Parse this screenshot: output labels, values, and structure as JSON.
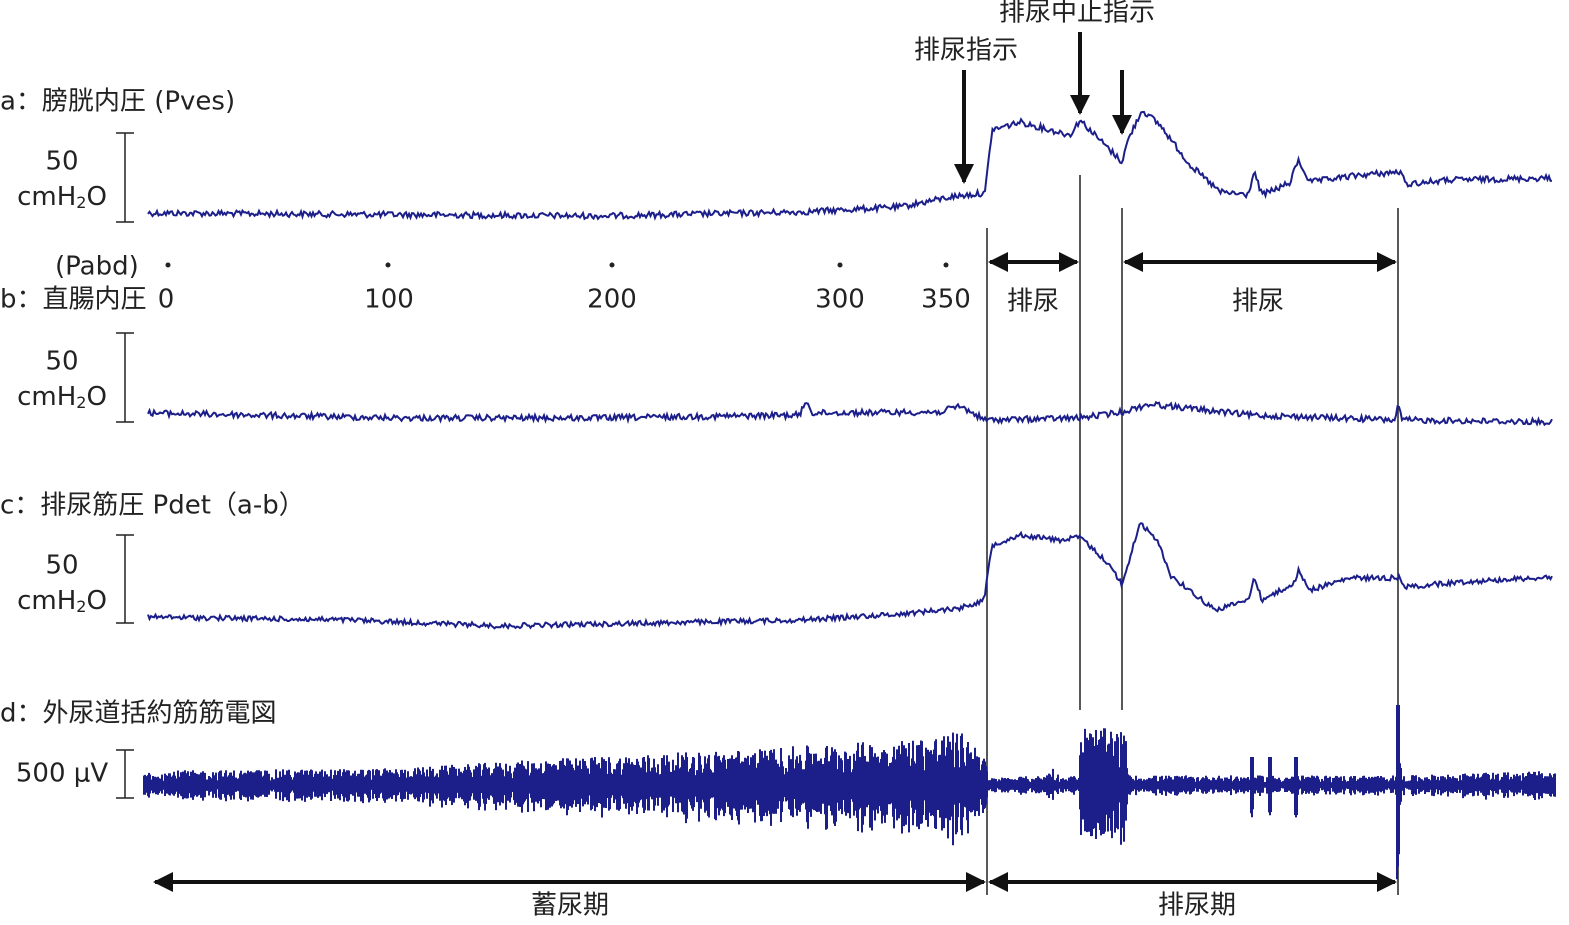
{
  "channels": [
    {
      "label": "a：膀胱内圧 (Pves)",
      "scale": "50",
      "unit": {
        "base": "cmH",
        "sub": "2",
        "tail": "O"
      }
    },
    {
      "label": "b：直腸内圧",
      "sublabel": "(Pabd)",
      "scale": "50",
      "unit": {
        "base": "cmH",
        "sub": "2",
        "tail": "O"
      }
    },
    {
      "label": "c：排尿筋圧 Pdet（a-b）",
      "scale": "50",
      "unit": {
        "base": "cmH",
        "sub": "2",
        "tail": "O"
      }
    },
    {
      "label": "d：外尿道括約筋筋電図",
      "scale": "500 μV"
    }
  ],
  "volume_marks": [
    "0",
    "100",
    "200",
    "300",
    "350"
  ],
  "annotations": {
    "void_command": "排尿指示",
    "stop_command": "排尿中止指示",
    "voiding_1": "排尿",
    "voiding_2": "排尿"
  },
  "phases": {
    "storage": "蓄尿期",
    "voiding": "排尿期"
  }
}
